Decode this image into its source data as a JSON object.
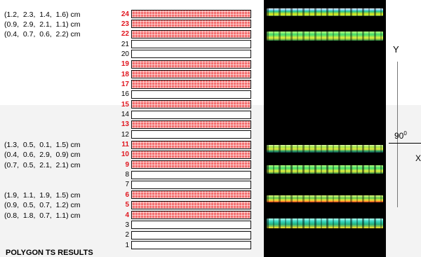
{
  "rows": [
    {
      "n": "24",
      "hl": true
    },
    {
      "n": "23",
      "hl": true
    },
    {
      "n": "22",
      "hl": true
    },
    {
      "n": "21",
      "hl": false
    },
    {
      "n": "20",
      "hl": false
    },
    {
      "n": "19",
      "hl": true
    },
    {
      "n": "18",
      "hl": true
    },
    {
      "n": "17",
      "hl": true
    },
    {
      "n": "16",
      "hl": false
    },
    {
      "n": "15",
      "hl": true
    },
    {
      "n": "14",
      "hl": false
    },
    {
      "n": "13",
      "hl": true
    },
    {
      "n": "12",
      "hl": false
    },
    {
      "n": "11",
      "hl": true
    },
    {
      "n": "10",
      "hl": true
    },
    {
      "n": "9",
      "hl": true
    },
    {
      "n": "8",
      "hl": false
    },
    {
      "n": "7",
      "hl": false
    },
    {
      "n": "6",
      "hl": true
    },
    {
      "n": "5",
      "hl": true
    },
    {
      "n": "4",
      "hl": true
    },
    {
      "n": "3",
      "hl": false
    },
    {
      "n": "2",
      "hl": false
    },
    {
      "n": "1",
      "hl": false
    }
  ],
  "labels": [
    {
      "row": "24",
      "text": "(1.2,  2.3,  1.4,  1.6) cm"
    },
    {
      "row": "23",
      "text": "(0.9,  2.9,  2.1,  1.1) cm"
    },
    {
      "row": "22",
      "text": "(0.4,  0.7,  0.6,  2.2) cm"
    },
    {
      "row": "11",
      "text": "(1.3,  0.5,  0.1,  1.5) cm"
    },
    {
      "row": "10",
      "text": "(0.4,  0.6,  2.9,  0.9) cm"
    },
    {
      "row": "9",
      "text": "(0.7,  0.5,  2.1,  2.1) cm"
    },
    {
      "row": "6",
      "text": "(1.9,  1.1,  1.9,  1.5) cm"
    },
    {
      "row": "5",
      "text": "(0.9,  0.5,  0.7,  1.2) cm"
    },
    {
      "row": "4",
      "text": "(0.8,  1.8,  0.7,  1.1) cm"
    }
  ],
  "bottom_title": "POLYGON TS RESULTS",
  "axis": {
    "y": "Y",
    "x": "X",
    "angle": "90",
    "angle_sup": "0"
  },
  "colors": {
    "highlight_row": "#f47070",
    "highlight_number": "#e0141d",
    "scan_background": "#000000"
  }
}
